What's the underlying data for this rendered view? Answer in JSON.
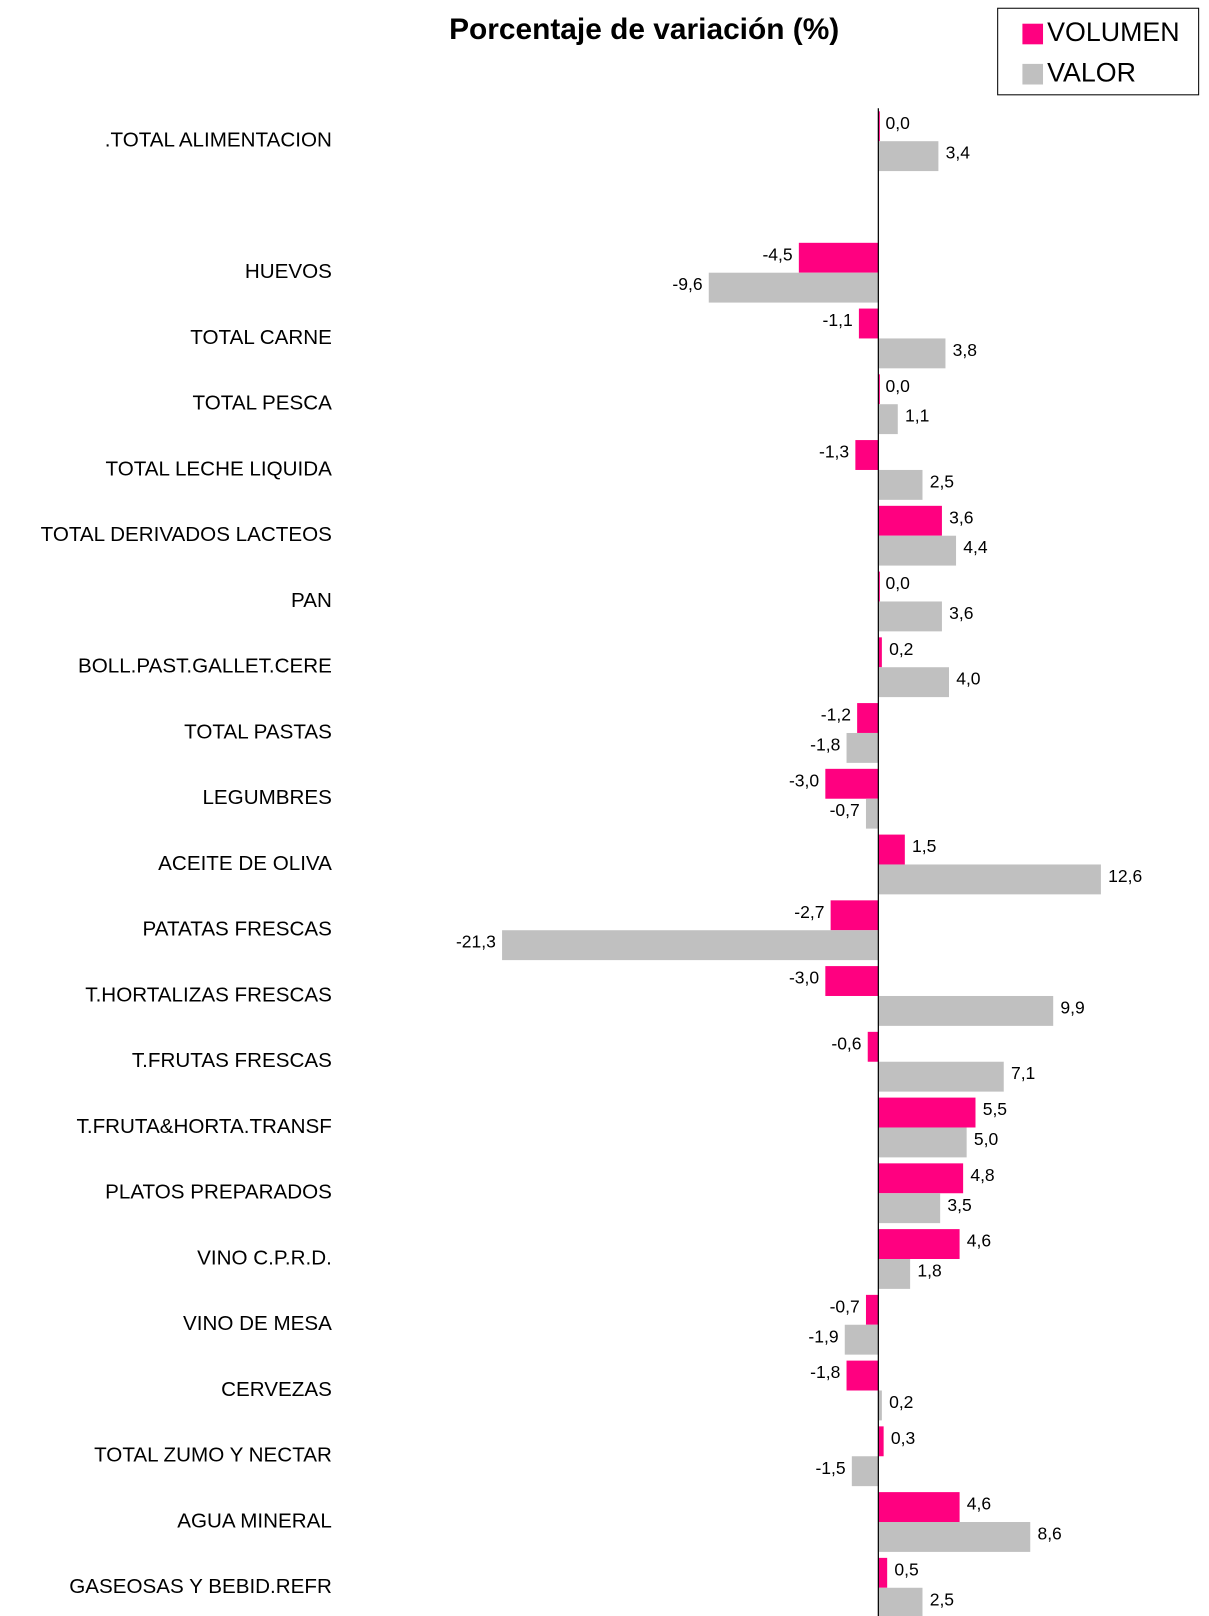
{
  "chart_data": {
    "type": "hbar",
    "title": "Porcentaje de variación (%)",
    "categories": [
      ".TOTAL ALIMENTACION",
      null,
      "HUEVOS",
      "TOTAL CARNE",
      "TOTAL PESCA",
      "TOTAL LECHE LIQUIDA",
      "TOTAL DERIVADOS LACTEOS",
      "PAN",
      "BOLL.PAST.GALLET.CERE",
      "TOTAL PASTAS",
      "LEGUMBRES",
      "ACEITE DE OLIVA",
      "PATATAS FRESCAS",
      "T.HORTALIZAS FRESCAS",
      "T.FRUTAS FRESCAS",
      "T.FRUTA&HORTA.TRANSF",
      "PLATOS PREPARADOS",
      "VINO C.P.R.D.",
      "VINO DE MESA",
      "CERVEZAS",
      "TOTAL ZUMO Y NECTAR",
      "AGUA MINERAL",
      "GASEOSAS Y BEBID.REFR"
    ],
    "series": [
      {
        "name": "VOLUMEN",
        "color": "#ff0080",
        "values": [
          0.0,
          null,
          -4.5,
          -1.1,
          0.0,
          -1.3,
          3.6,
          0.0,
          0.2,
          -1.2,
          -3.0,
          1.5,
          -2.7,
          -3.0,
          -0.6,
          5.5,
          4.8,
          4.6,
          -0.7,
          -1.8,
          0.3,
          4.6,
          0.5
        ],
        "value_labels": [
          "0,0",
          null,
          "-4,5",
          "-1,1",
          "0,0",
          "-1,3",
          "3,6",
          "0,0",
          "0,2",
          "-1,2",
          "-3,0",
          "1,5",
          "-2,7",
          "-3,0",
          "-0,6",
          "5,5",
          "4,8",
          "4,6",
          "-0,7",
          "-1,8",
          "0,3",
          "4,6",
          "0,5"
        ]
      },
      {
        "name": "VALOR",
        "color": "#c0c0c0",
        "values": [
          3.4,
          null,
          -9.6,
          3.8,
          1.1,
          2.5,
          4.4,
          3.6,
          4.0,
          -1.8,
          -0.7,
          12.6,
          -21.3,
          9.9,
          7.1,
          5.0,
          3.5,
          1.8,
          -1.9,
          0.2,
          -1.5,
          8.6,
          2.5
        ],
        "value_labels": [
          "3,4",
          null,
          "-9,6",
          "3,8",
          "1,1",
          "2,5",
          "4,4",
          "3,6",
          "4,0",
          "-1,8",
          "-0,7",
          "12,6",
          "-21,3",
          "9,9",
          "7,1",
          "5,0",
          "3,5",
          "1,8",
          "-1,9",
          "0,2",
          "-1,5",
          "8,6",
          "2,5"
        ]
      }
    ],
    "xlim": [
      -30,
      20
    ],
    "legend": "top-right"
  }
}
